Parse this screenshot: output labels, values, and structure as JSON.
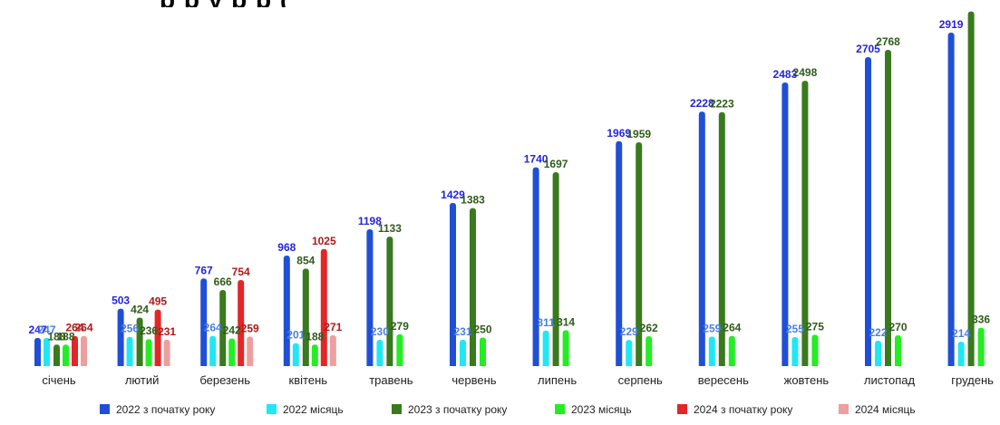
{
  "chart_data": {
    "type": "bar",
    "title": "",
    "xlabel": "",
    "ylabel": "",
    "ylim": [
      0,
      3000
    ],
    "grid": false,
    "legend_position": "bottom",
    "categories": [
      "січень",
      "лютий",
      "березень",
      "квітень",
      "травень",
      "червень",
      "липень",
      "серпень",
      "вересень",
      "жовтень",
      "листопад",
      "грудень"
    ],
    "series": [
      {
        "name": "2022 з початку року",
        "color": "#1F4FD6",
        "label_color": "#2424E0",
        "values": [
          247,
          503,
          767,
          968,
          1198,
          1429,
          1740,
          1969,
          2228,
          2483,
          2705,
          2919
        ]
      },
      {
        "name": "2022 місяць",
        "color": "#1FE8F6",
        "label_color": "#4A7EE0",
        "values": [
          247,
          256,
          264,
          201,
          230,
          231,
          311,
          229,
          259,
          255,
          222,
          214
        ]
      },
      {
        "name": "2023 з початку року",
        "color": "#3A7A1E",
        "label_color": "#2F5A1A",
        "values": [
          188,
          424,
          666,
          854,
          1133,
          1383,
          1697,
          1959,
          2223,
          2498,
          2768,
          3104
        ]
      },
      {
        "name": "2023 місяць",
        "color": "#22EE22",
        "label_color": "#2F5A1A",
        "values": [
          188,
          236,
          242,
          188,
          279,
          250,
          314,
          262,
          264,
          275,
          270,
          336
        ]
      },
      {
        "name": "2024 з початку року",
        "color": "#E32626",
        "label_color": "#B01818",
        "values": [
          264,
          495,
          754,
          1025,
          null,
          null,
          null,
          null,
          null,
          null,
          null,
          null
        ]
      },
      {
        "name": "2024 місяць",
        "color": "#EE9E9E",
        "label_color": "#B01818",
        "values": [
          264,
          231,
          259,
          271,
          null,
          null,
          null,
          null,
          null,
          null,
          null,
          null
        ]
      }
    ],
    "value_labels_shown": [
      [
        true,
        true,
        true,
        true,
        true,
        true,
        true,
        true,
        true,
        true,
        true,
        true
      ],
      [
        true,
        true,
        true,
        true,
        true,
        true,
        true,
        true,
        true,
        true,
        true,
        true
      ],
      [
        true,
        true,
        true,
        true,
        true,
        true,
        true,
        true,
        true,
        true,
        true,
        false
      ],
      [
        true,
        true,
        true,
        true,
        true,
        true,
        true,
        true,
        true,
        true,
        true,
        true
      ],
      [
        true,
        true,
        true,
        true,
        false,
        false,
        false,
        false,
        false,
        false,
        false,
        false
      ],
      [
        true,
        true,
        true,
        true,
        false,
        false,
        false,
        false,
        false,
        false,
        false,
        false
      ]
    ]
  },
  "title_fragment": "р                 р                     у      р                          р      ("
}
